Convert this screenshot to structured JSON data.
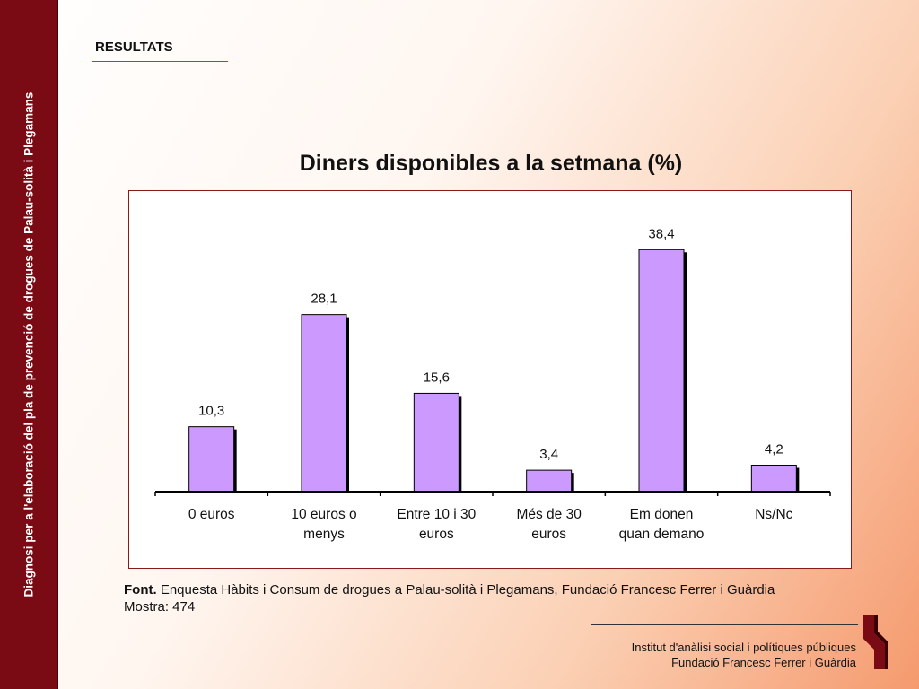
{
  "sidebar": {
    "text": "Diagnosi per a l'elaboració del pla de prevenció de drogues de Palau-solità i Plegamans"
  },
  "header": {
    "section": "RESULTATS"
  },
  "chart_data": {
    "type": "bar",
    "title": "Diners disponibles a la setmana (%)",
    "categories": [
      [
        "0 euros"
      ],
      [
        "10 euros o",
        "menys"
      ],
      [
        "Entre 10 i 30",
        "euros"
      ],
      [
        "Més de 30",
        "euros"
      ],
      [
        "Em donen",
        "quan demano"
      ],
      [
        "Ns/Nc"
      ]
    ],
    "values": [
      10.3,
      28.1,
      15.6,
      3.4,
      38.4,
      4.2
    ],
    "value_labels": [
      "10,3",
      "28,1",
      "15,6",
      "3,4",
      "38,4",
      "4,2"
    ],
    "ylim": [
      0,
      42
    ],
    "bar_color": "#cc99ff",
    "grid": false,
    "legend": "none"
  },
  "source": {
    "label": "Font.",
    "text": " Enquesta Hàbits i Consum de drogues a Palau-solità i Plegamans, Fundació Francesc Ferrer i Guàrdia",
    "sample": "Mostra: 474"
  },
  "footer": {
    "line1": "Institut d'anàlisi social i polítiques públiques",
    "line2": "Fundació Francesc Ferrer i Guàrdia"
  }
}
